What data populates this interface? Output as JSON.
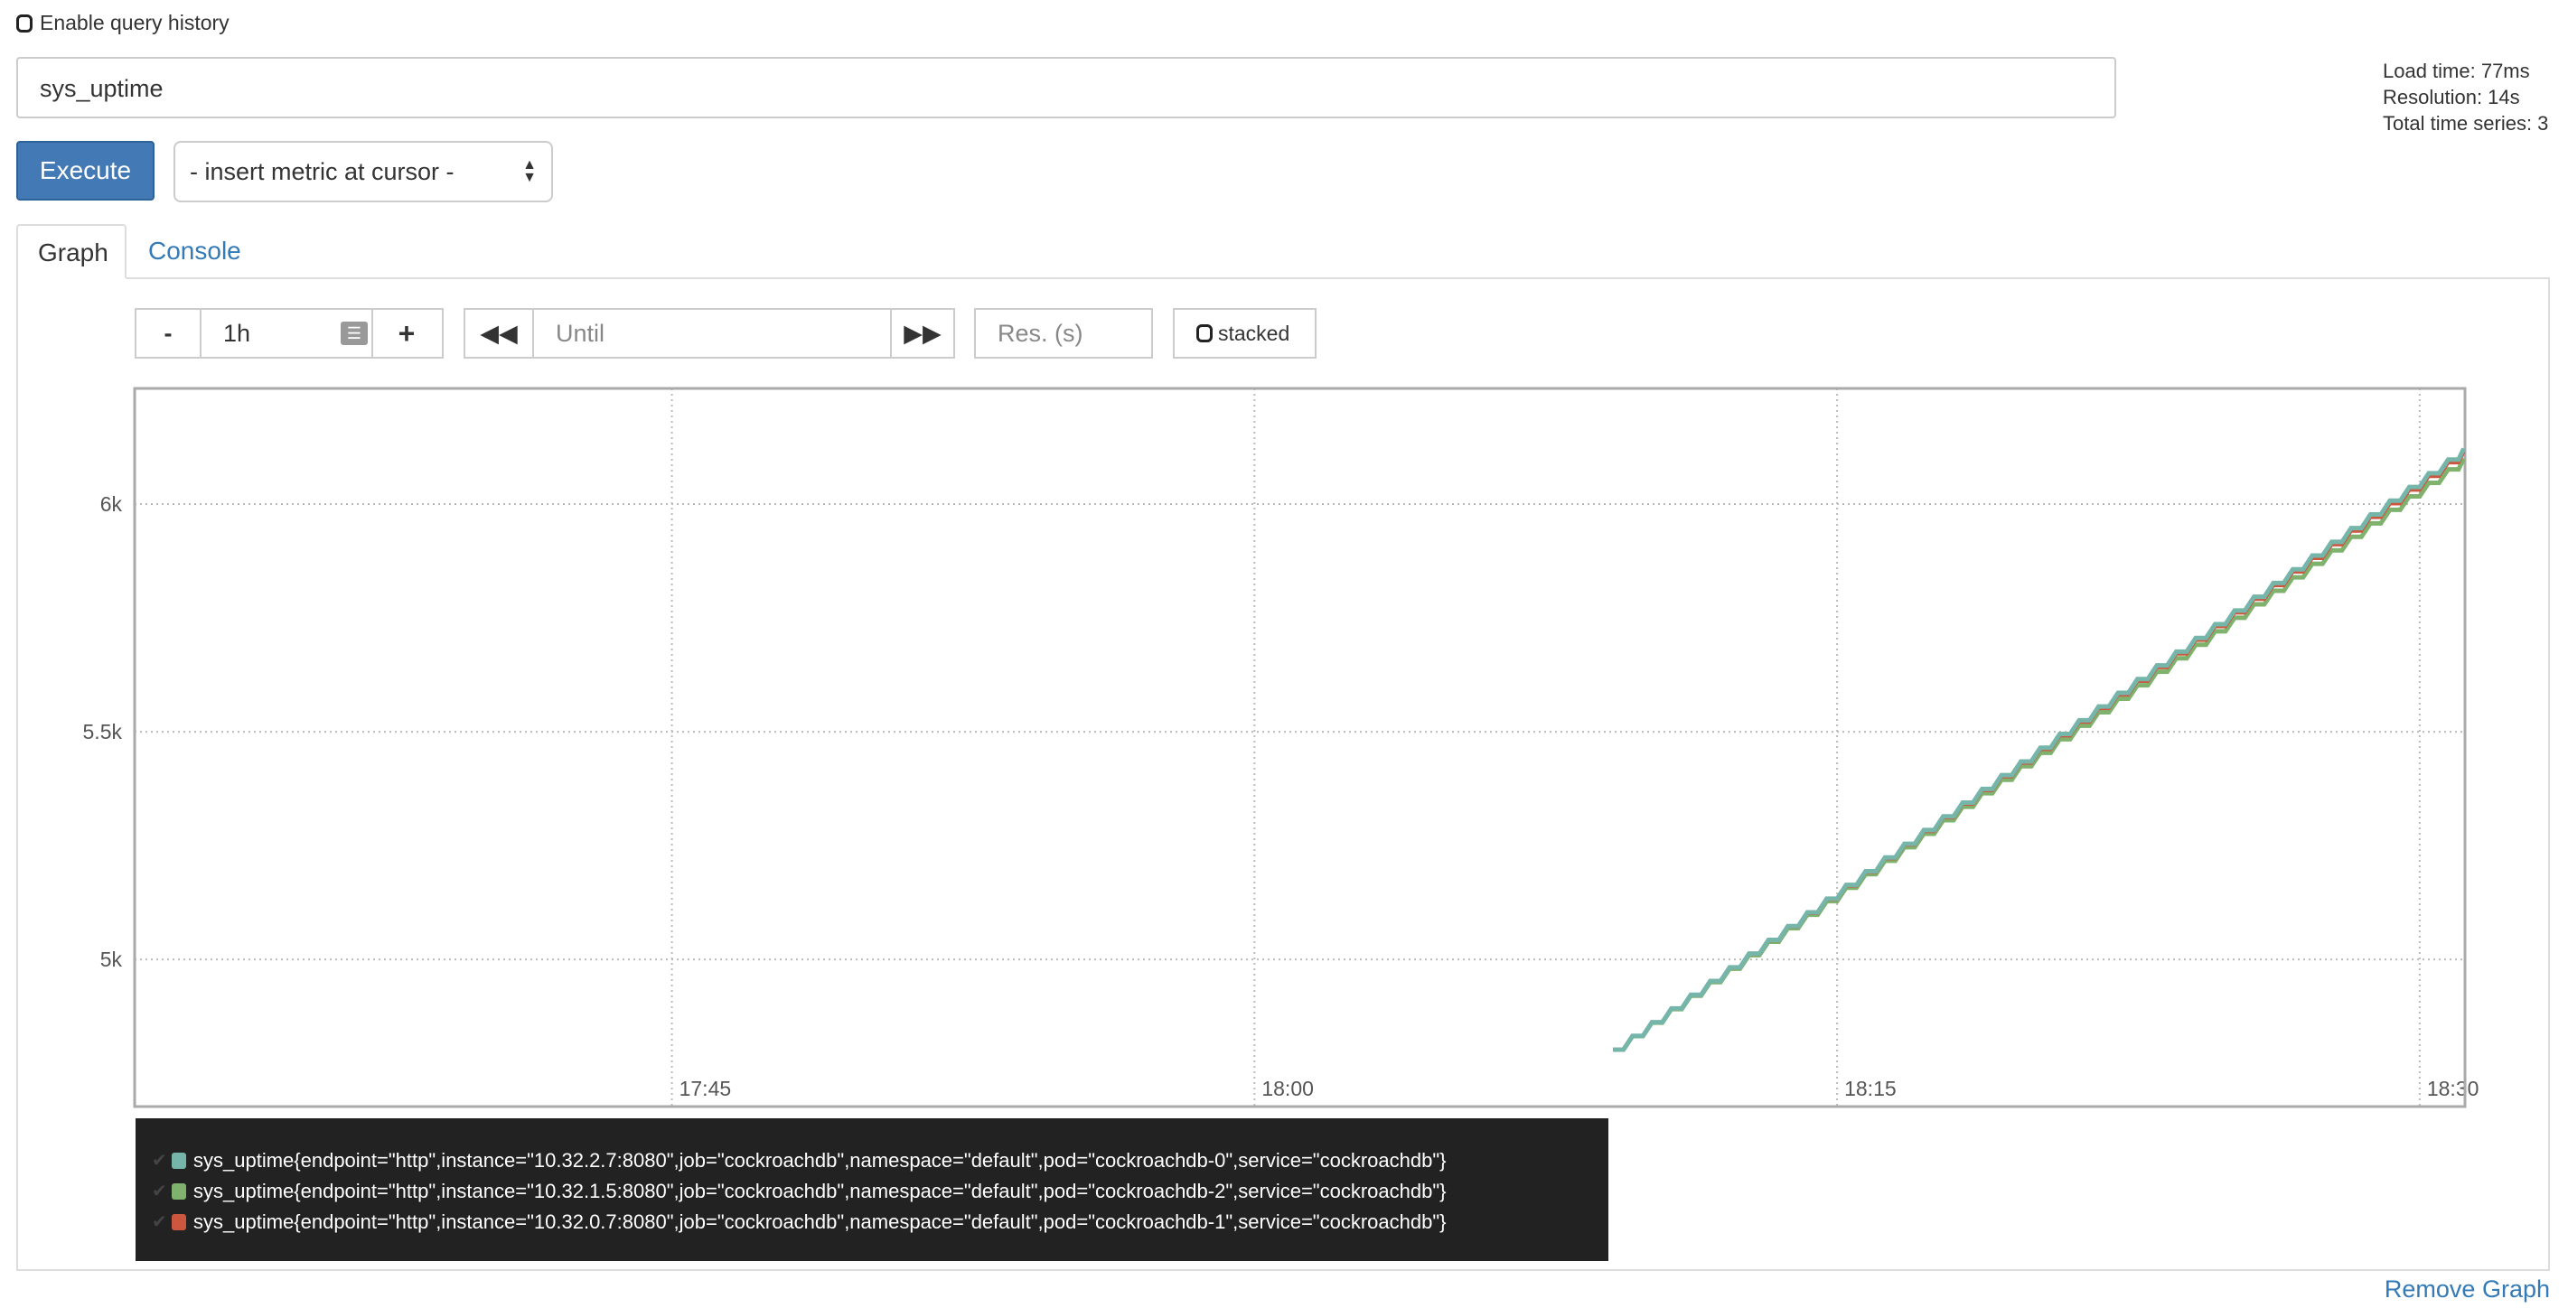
{
  "history": {
    "label": "Enable query history",
    "checked": false
  },
  "expression": "sys_uptime",
  "stats": {
    "load_time": "Load time: 77ms",
    "resolution": "Resolution: 14s",
    "total_series": "Total time series: 3"
  },
  "execute_label": "Execute",
  "metric_select": "- insert metric at cursor -",
  "tabs": [
    {
      "label": "Graph",
      "active": true
    },
    {
      "label": "Console",
      "active": false
    }
  ],
  "controls": {
    "minus": "-",
    "range": "1h",
    "plus": "+",
    "until_placeholder": "Until",
    "res_placeholder": "Res. (s)",
    "stacked_label": "stacked"
  },
  "remove_graph": "Remove Graph",
  "chart_data": {
    "type": "line",
    "x_ticks": [
      "17:45",
      "18:00",
      "18:15",
      "18:30"
    ],
    "y_ticks": [
      "5k",
      "5.5k",
      "6k"
    ],
    "y_tick_values": [
      5000,
      5500,
      6000
    ],
    "xlim": [
      "17:31:10",
      "18:31:10"
    ],
    "ylim": [
      4677,
      6254
    ],
    "grid": true,
    "legend": "bottom-left",
    "series": [
      {
        "name": "sys_uptime{endpoint=\"http\",instance=\"10.32.2.7:8080\",job=\"cockroachdb\",namespace=\"default\",pod=\"cockroachdb-0\",service=\"cockroachdb\"}",
        "color": "#75b5aa",
        "start": [
          "18:09:14",
          4802
        ],
        "end": [
          "18:31:08",
          6122
        ],
        "step_s": 30
      },
      {
        "name": "sys_uptime{endpoint=\"http\",instance=\"10.32.1.5:8080\",job=\"cockroachdb\",namespace=\"default\",pod=\"cockroachdb-2\",service=\"cockroachdb\"}",
        "color": "#7eb26d",
        "start": [
          "18:09:14",
          4802
        ],
        "end": [
          "18:31:08",
          6100
        ],
        "step_s": 30
      },
      {
        "name": "sys_uptime{endpoint=\"http\",instance=\"10.32.0.7:8080\",job=\"cockroachdb\",namespace=\"default\",pod=\"cockroachdb-1\",service=\"cockroachdb\"}",
        "color": "#cc573e",
        "start": [
          "18:09:14",
          4802
        ],
        "end": [
          "18:31:08",
          6115
        ],
        "step_s": 30
      }
    ]
  }
}
